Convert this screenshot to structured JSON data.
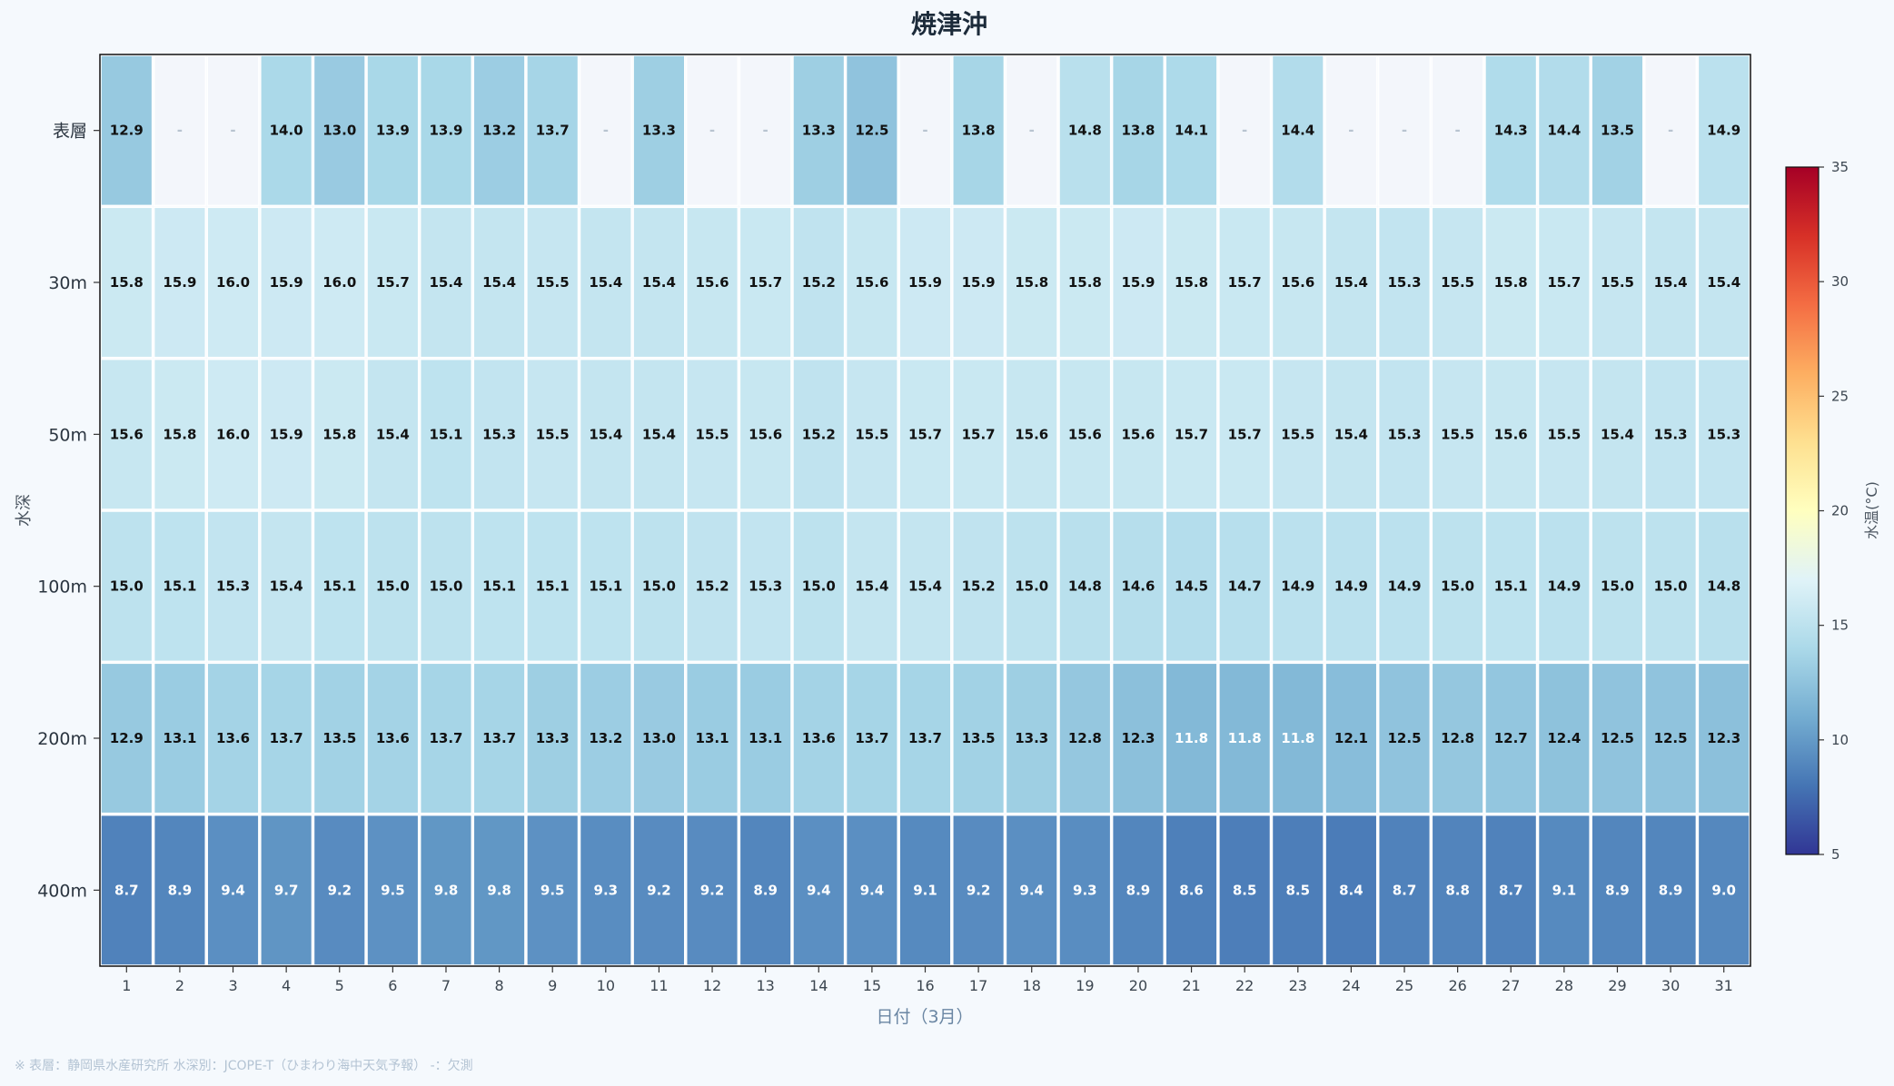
{
  "chart_data": {
    "type": "heatmap",
    "title": "焼津沖",
    "xlabel": "日付（3月）",
    "ylabel": "水深",
    "x": [
      "1",
      "2",
      "3",
      "4",
      "5",
      "6",
      "7",
      "8",
      "9",
      "10",
      "11",
      "12",
      "13",
      "14",
      "15",
      "16",
      "17",
      "18",
      "19",
      "20",
      "21",
      "22",
      "23",
      "24",
      "25",
      "26",
      "27",
      "28",
      "29",
      "30",
      "31"
    ],
    "rows": [
      "表層",
      "30m",
      "50m",
      "100m",
      "200m",
      "400m"
    ],
    "values": [
      [
        12.9,
        null,
        null,
        14.0,
        13.0,
        13.9,
        13.9,
        13.2,
        13.7,
        null,
        13.3,
        null,
        null,
        13.3,
        12.5,
        null,
        13.8,
        null,
        14.8,
        13.8,
        14.1,
        null,
        14.4,
        null,
        null,
        null,
        14.3,
        14.4,
        13.5,
        null,
        14.9
      ],
      [
        15.8,
        15.9,
        16.0,
        15.9,
        16.0,
        15.7,
        15.4,
        15.4,
        15.5,
        15.4,
        15.4,
        15.6,
        15.7,
        15.2,
        15.6,
        15.9,
        15.9,
        15.8,
        15.8,
        15.9,
        15.8,
        15.7,
        15.6,
        15.4,
        15.3,
        15.5,
        15.8,
        15.7,
        15.5,
        15.4,
        15.4
      ],
      [
        15.6,
        15.8,
        16.0,
        15.9,
        15.8,
        15.4,
        15.1,
        15.3,
        15.5,
        15.4,
        15.4,
        15.5,
        15.6,
        15.2,
        15.5,
        15.7,
        15.7,
        15.6,
        15.6,
        15.6,
        15.7,
        15.7,
        15.5,
        15.4,
        15.3,
        15.5,
        15.6,
        15.5,
        15.4,
        15.3,
        15.3
      ],
      [
        15.0,
        15.1,
        15.3,
        15.4,
        15.1,
        15.0,
        15.0,
        15.1,
        15.1,
        15.1,
        15.0,
        15.2,
        15.3,
        15.0,
        15.4,
        15.4,
        15.2,
        15.0,
        14.8,
        14.6,
        14.5,
        14.7,
        14.9,
        14.9,
        14.9,
        15.0,
        15.1,
        14.9,
        15.0,
        15.0,
        14.8
      ],
      [
        12.9,
        13.1,
        13.6,
        13.7,
        13.5,
        13.6,
        13.7,
        13.7,
        13.3,
        13.2,
        13.0,
        13.1,
        13.1,
        13.6,
        13.7,
        13.7,
        13.5,
        13.3,
        12.8,
        12.3,
        11.8,
        11.8,
        11.8,
        12.1,
        12.5,
        12.8,
        12.7,
        12.4,
        12.5,
        12.5,
        12.3
      ],
      [
        8.7,
        8.9,
        9.4,
        9.7,
        9.2,
        9.5,
        9.8,
        9.8,
        9.5,
        9.3,
        9.2,
        9.2,
        8.9,
        9.4,
        9.4,
        9.1,
        9.2,
        9.4,
        9.3,
        8.9,
        8.6,
        8.5,
        8.5,
        8.4,
        8.7,
        8.8,
        8.7,
        9.1,
        8.9,
        8.9,
        9.0
      ]
    ],
    "missing_label": "-",
    "colorbar": {
      "label": "水温(°C)",
      "range": [
        5,
        35
      ],
      "ticks": [
        5,
        10,
        15,
        20,
        25,
        30,
        35
      ],
      "colormap": "RdYlBu_r"
    },
    "note": "※ 表層：静岡県水産研究所  水深別：JCOPE-T（ひまわり海中天気予報）  -：欠測"
  }
}
